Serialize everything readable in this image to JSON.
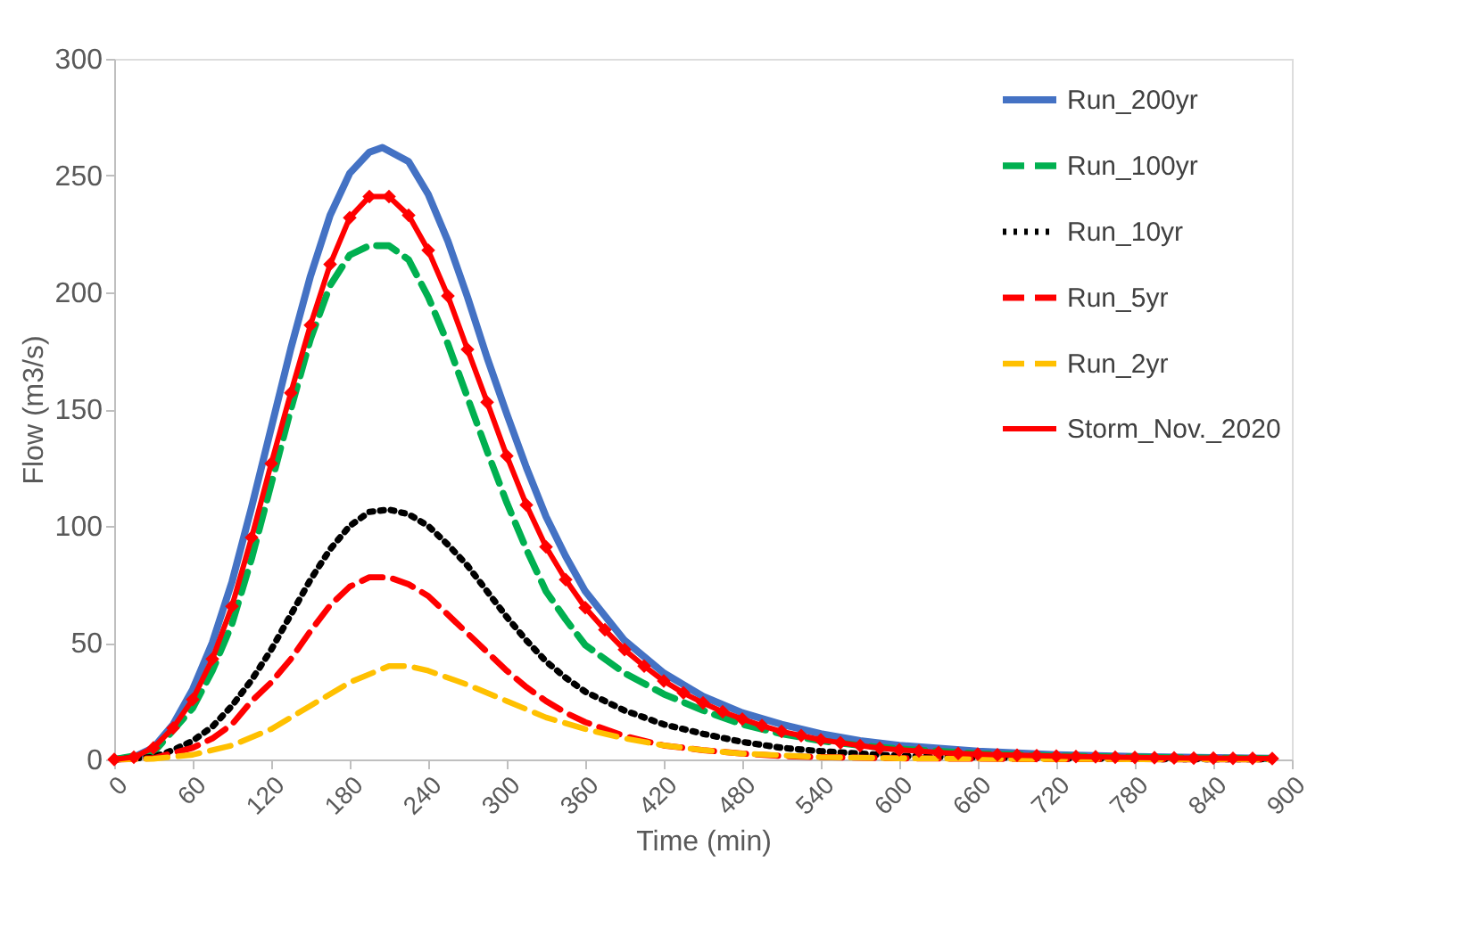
{
  "chart_data": {
    "type": "line",
    "xlabel": "Time (min)",
    "ylabel": "Flow (m3/s)",
    "xlim": [
      0,
      900
    ],
    "xticks": [
      0,
      60,
      120,
      180,
      240,
      300,
      360,
      420,
      480,
      540,
      600,
      660,
      720,
      780,
      840,
      900
    ],
    "ylim": [
      0,
      300
    ],
    "yticks": [
      0,
      50,
      100,
      150,
      200,
      250,
      300
    ],
    "grid": false,
    "legend": "top right",
    "marker": "none",
    "series": [
      {
        "name": "Run_200yr",
        "color": "#4472c4",
        "line_style": "solid",
        "x": [
          0,
          15,
          30,
          45,
          60,
          75,
          90,
          105,
          120,
          135,
          150,
          165,
          180,
          195,
          205,
          225,
          240,
          255,
          270,
          285,
          300,
          315,
          330,
          345,
          360,
          390,
          420,
          450,
          480,
          510,
          540,
          570,
          600,
          660,
          720,
          780,
          840,
          885
        ],
        "values": [
          0,
          1,
          5,
          15,
          30,
          50,
          76,
          108,
          142,
          176,
          207,
          233,
          251,
          260,
          262,
          256,
          242,
          222,
          198,
          172,
          148,
          125,
          104,
          87,
          72,
          51,
          37,
          27,
          20,
          15,
          11,
          8,
          6,
          3.5,
          2,
          1.2,
          0.8,
          0.5
        ]
      },
      {
        "name": "Run_100yr",
        "color": "#00b050",
        "line_style": "dashed",
        "x": [
          0,
          30,
          60,
          75,
          90,
          105,
          120,
          135,
          150,
          165,
          180,
          195,
          210,
          225,
          240,
          255,
          270,
          285,
          300,
          315,
          330,
          345,
          360,
          390,
          420,
          450,
          480,
          510,
          540,
          570,
          600,
          660,
          720,
          780,
          840,
          885
        ],
        "values": [
          0,
          3,
          22,
          38,
          58,
          86,
          118,
          150,
          180,
          203,
          216,
          220,
          220,
          214,
          198,
          178,
          155,
          132,
          110,
          90,
          72,
          60,
          49,
          37,
          28,
          21,
          15,
          11,
          8,
          6,
          4.5,
          2.5,
          1.5,
          1,
          0.6,
          0.4
        ]
      },
      {
        "name": "Run_10yr",
        "color": "#000000",
        "line_style": "dotted",
        "x": [
          0,
          30,
          45,
          60,
          75,
          90,
          105,
          120,
          135,
          150,
          165,
          180,
          195,
          210,
          225,
          240,
          255,
          270,
          285,
          300,
          315,
          330,
          345,
          360,
          390,
          420,
          450,
          480,
          510,
          540,
          570,
          600,
          660,
          720,
          780,
          885
        ],
        "values": [
          0,
          1,
          4,
          8,
          14,
          23,
          34,
          47,
          62,
          77,
          90,
          100,
          106,
          107,
          105,
          100,
          92,
          83,
          72,
          61,
          51,
          42,
          35,
          29,
          21,
          15,
          11,
          7.5,
          5,
          3.5,
          2.5,
          1.5,
          0.8,
          0.4,
          0.2,
          0.1
        ]
      },
      {
        "name": "Run_5yr",
        "color": "#ff0000",
        "line_style": "dashed",
        "x": [
          0,
          30,
          60,
          75,
          90,
          105,
          120,
          135,
          150,
          165,
          180,
          195,
          210,
          225,
          240,
          255,
          270,
          285,
          300,
          315,
          330,
          345,
          360,
          390,
          420,
          450,
          480,
          510,
          540,
          600,
          700,
          885
        ],
        "values": [
          0,
          0.5,
          5,
          9,
          15,
          25,
          33,
          43,
          55,
          66,
          74,
          78,
          78,
          75,
          70,
          62,
          54,
          46,
          38,
          31,
          25,
          20,
          16,
          10,
          6,
          4,
          2.5,
          1.5,
          1,
          0.5,
          0.2,
          0
        ]
      },
      {
        "name": "Run_2yr",
        "color": "#ffc000",
        "line_style": "dashed",
        "x": [
          0,
          30,
          60,
          90,
          120,
          150,
          180,
          210,
          225,
          240,
          270,
          300,
          330,
          360,
          390,
          420,
          450,
          480,
          540,
          600,
          700,
          885
        ],
        "values": [
          0,
          0.3,
          2,
          6,
          13,
          23,
          33,
          40,
          40,
          38,
          32,
          25,
          18,
          13,
          9,
          6,
          4,
          2.5,
          1,
          0.5,
          0.2,
          0
        ]
      },
      {
        "name": "Storm_Nov._2020",
        "color": "#ff0000",
        "line_style": "solid",
        "marker": "diamond",
        "x": [
          0,
          15,
          30,
          45,
          60,
          75,
          90,
          105,
          120,
          135,
          150,
          165,
          180,
          195,
          210,
          225,
          240,
          255,
          270,
          285,
          300,
          315,
          330,
          345,
          360,
          375,
          390,
          405,
          420,
          435,
          450,
          465,
          480,
          495,
          510,
          525,
          540,
          555,
          570,
          585,
          600,
          615,
          630,
          645,
          660,
          675,
          690,
          705,
          720,
          735,
          750,
          765,
          780,
          795,
          810,
          825,
          840,
          855,
          870,
          885
        ],
        "values": [
          0,
          1,
          5,
          13.5,
          25.7,
          43,
          65.6,
          95,
          126.7,
          157,
          186,
          212,
          232,
          241,
          241,
          233,
          218,
          198.5,
          175.6,
          153,
          130,
          109,
          91,
          77,
          65,
          55.5,
          47,
          40,
          33.6,
          28.5,
          24.2,
          20.4,
          17.3,
          14.5,
          12,
          10.2,
          8.4,
          7.2,
          5.9,
          4.9,
          4.1,
          3.6,
          3,
          2.6,
          2.3,
          2,
          1.8,
          1.6,
          1.4,
          1.2,
          1.1,
          1,
          0.9,
          0.8,
          0.7,
          0.6,
          0.6,
          0.5,
          0.5,
          0.4
        ]
      }
    ]
  }
}
